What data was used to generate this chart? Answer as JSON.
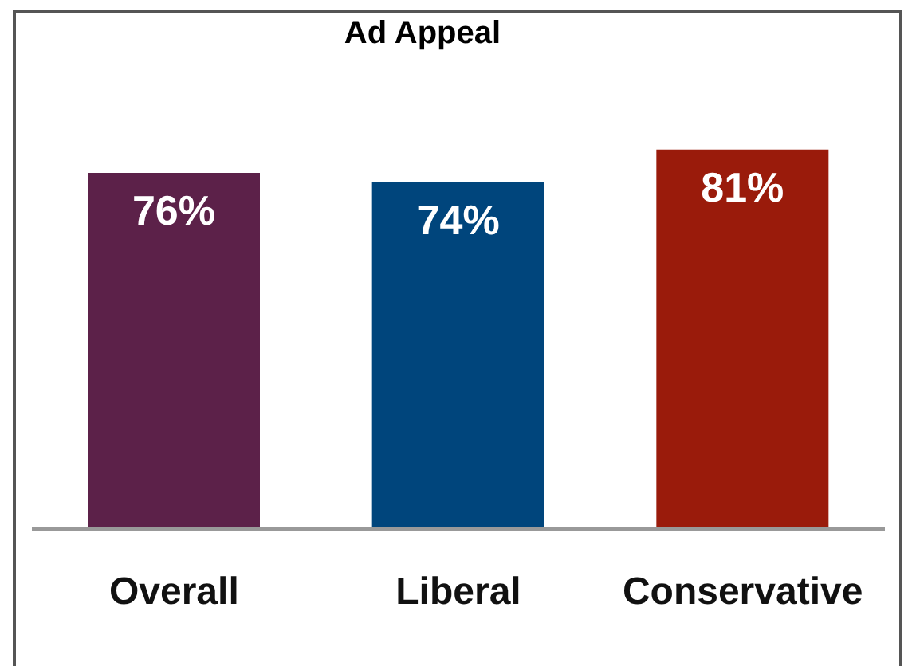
{
  "chart_data": {
    "type": "bar",
    "title": "Ad Appeal",
    "categories": [
      "Overall",
      "Liberal",
      "Conservative"
    ],
    "values": [
      76,
      74,
      81
    ],
    "colors": [
      "#5c2149",
      "#00457c",
      "#9a1b0b"
    ],
    "value_labels": [
      "76%",
      "74%",
      "81%"
    ]
  }
}
